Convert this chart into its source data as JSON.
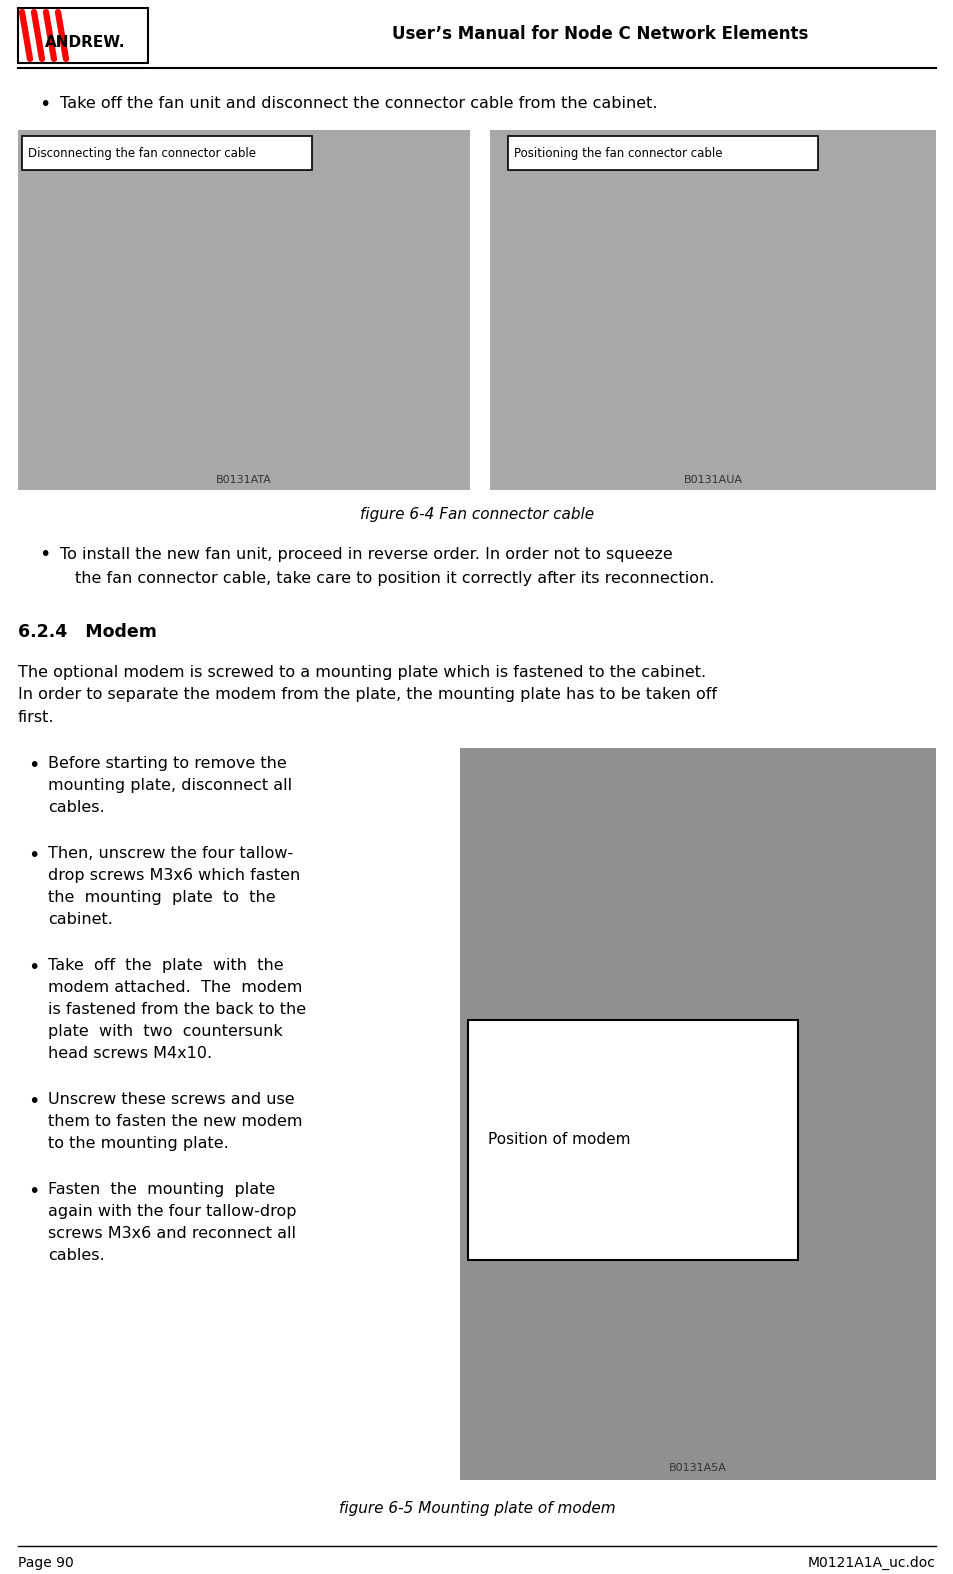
{
  "page_width": 9.54,
  "page_height": 15.74,
  "bg_color": "#ffffff",
  "header_title": "User’s Manual for Node C Network Elements",
  "footer_left": "Page 90",
  "footer_right": "M0121A1A_uc.doc",
  "bullet1": "Take off the fan unit and disconnect the connector cable from the cabinet.",
  "fig4_caption": "figure 6-4 Fan connector cable",
  "fig4_label_left": "Disconnecting the fan connector cable",
  "fig4_label_right": "Positioning the fan connector cable",
  "fig4_code_left": "B0131ATA",
  "fig4_code_right": "B0131AUA",
  "bullet2_line1": "To install the new fan unit, proceed in reverse order. In order not to squeeze",
  "bullet2_line2": "the fan connector cable, take care to position it correctly after its reconnection.",
  "section_title": "6.2.4   Modem",
  "section_para_line1": "The optional modem is screwed to a mounting plate which is fastened to the cabinet.",
  "section_para_line2": "In order to separate the modem from the plate, the mounting plate has to be taken off",
  "section_para_line3": "first.",
  "modem_bullet1": [
    "Before starting to remove the",
    "mounting plate, disconnect all",
    "cables."
  ],
  "modem_bullet2": [
    "Then, unscrew the four tallow-",
    "drop screws M3x6 which fasten",
    "the  mounting  plate  to  the",
    "cabinet."
  ],
  "modem_bullet3": [
    "Take  off  the  plate  with  the",
    "modem attached.  The  modem",
    "is fastened from the back to the",
    "plate  with  two  countersunk",
    "head screws M4x10."
  ],
  "modem_bullet4": [
    "Unscrew these screws and use",
    "them to fasten the new modem",
    "to the mounting plate."
  ],
  "modem_bullet5": [
    "Fasten  the  mounting  plate",
    "again with the four tallow-drop",
    "screws M3x6 and reconnect all",
    "cables."
  ],
  "fig5_caption": "figure 6-5 Mounting plate of modem",
  "fig5_label": "Position of modem",
  "fig5_code": "B0131A5A",
  "img_gray": "#a8a8a8",
  "img_gray2": "#909090"
}
